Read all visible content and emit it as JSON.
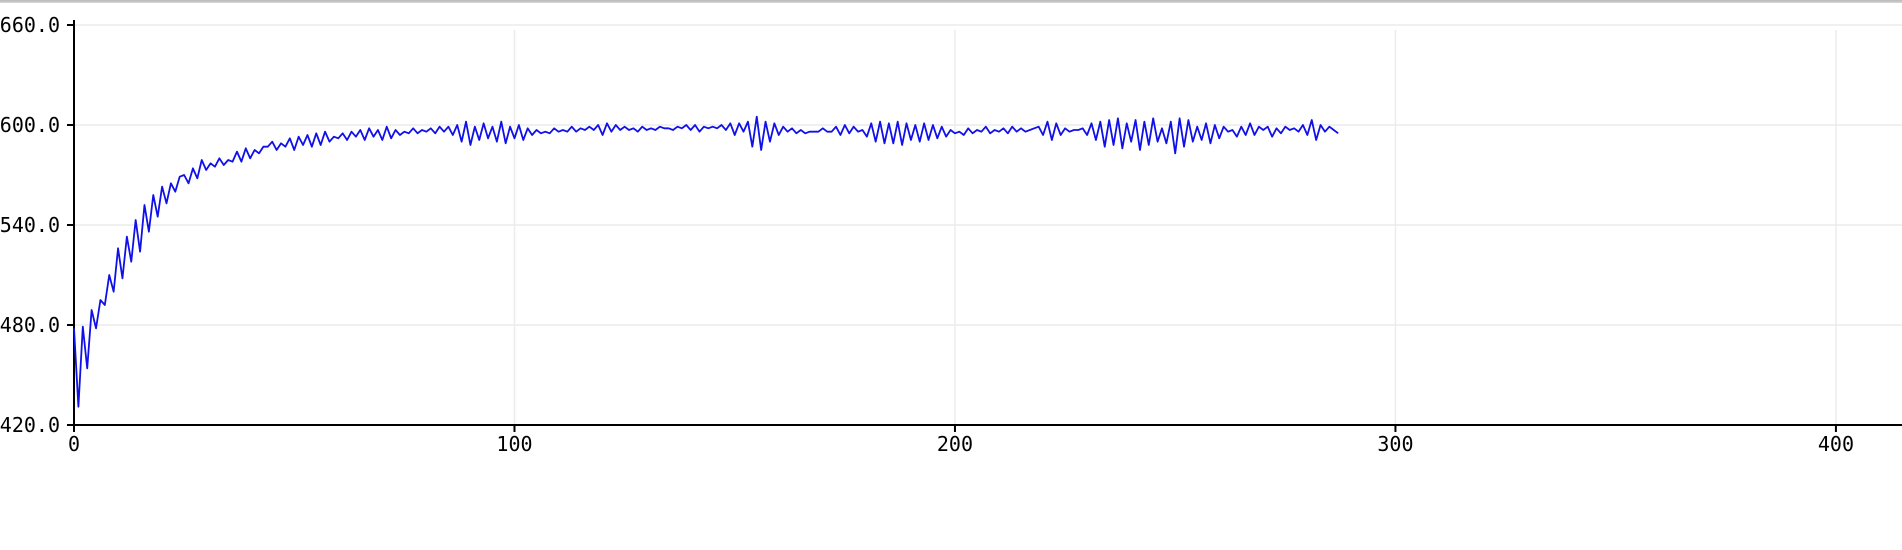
{
  "colors": {
    "line": "#1010e8",
    "grid": "#ececec",
    "axis": "#000000",
    "background": "#ffffff"
  },
  "chart_data": {
    "type": "line",
    "title": "",
    "xlabel": "",
    "ylabel": "",
    "xlim": [
      0,
      415
    ],
    "ylim": [
      420,
      672
    ],
    "grid": true,
    "legend": "none",
    "x_ticks": [
      0,
      100,
      200,
      300,
      400
    ],
    "x_tick_labels": [
      "0",
      "100",
      "200",
      "300",
      "400"
    ],
    "y_ticks": [
      420,
      480,
      540,
      600,
      660
    ],
    "y_tick_labels": [
      "420.0",
      "480.0",
      "540.0",
      "600.0",
      "660.0"
    ],
    "series": [
      {
        "x_start": 0,
        "x_step": 1,
        "values": [
          478,
          431,
          479,
          454,
          489,
          478,
          495,
          492,
          510,
          500,
          526,
          508,
          533,
          518,
          543,
          524,
          552,
          536,
          558,
          545,
          563,
          553,
          565,
          560,
          569,
          570,
          565,
          574,
          568,
          579,
          573,
          577,
          575,
          580,
          576,
          579,
          578,
          584,
          578,
          586,
          580,
          585,
          583,
          587,
          587,
          590,
          585,
          589,
          587,
          592,
          585,
          593,
          588,
          594,
          587,
          595,
          588,
          596,
          590,
          593,
          592,
          595,
          591,
          596,
          593,
          597,
          591,
          598,
          593,
          597,
          591,
          599,
          592,
          597,
          594,
          596,
          595,
          598,
          595,
          597,
          596,
          598,
          595,
          599,
          596,
          599,
          594,
          600,
          590,
          602,
          588,
          599,
          591,
          601,
          592,
          599,
          590,
          602,
          589,
          599,
          592,
          600,
          591,
          598,
          594,
          597,
          595,
          596,
          595,
          598,
          596,
          597,
          596,
          599,
          596,
          598,
          597,
          599,
          597,
          600,
          594,
          601,
          596,
          600,
          597,
          599,
          597,
          598,
          596,
          599,
          597,
          598,
          597,
          599,
          598,
          598,
          597,
          599,
          598,
          600,
          597,
          600,
          596,
          599,
          598,
          599,
          598,
          600,
          597,
          601,
          594,
          601,
          596,
          602,
          587,
          605,
          585,
          602,
          590,
          601,
          594,
          599,
          596,
          598,
          595,
          597,
          595,
          596,
          596,
          596,
          598,
          596,
          596,
          599,
          594,
          600,
          595,
          599,
          596,
          597,
          593,
          601,
          590,
          602,
          589,
          601,
          589,
          602,
          588,
          601,
          591,
          600,
          590,
          601,
          591,
          600,
          592,
          599,
          593,
          597,
          595,
          596,
          594,
          598,
          595,
          597,
          596,
          599,
          595,
          597,
          596,
          598,
          595,
          599,
          596,
          598,
          596,
          597,
          598,
          599,
          594,
          602,
          591,
          601,
          594,
          598,
          596,
          597,
          597,
          598,
          594,
          601,
          591,
          602,
          587,
          603,
          588,
          604,
          586,
          601,
          590,
          603,
          585,
          602,
          588,
          604,
          590,
          598,
          589,
          602,
          583,
          604,
          587,
          603,
          590,
          599,
          591,
          601,
          589,
          600,
          592,
          599,
          596,
          597,
          593,
          599,
          594,
          601,
          594,
          599,
          597,
          599,
          593,
          598,
          595,
          599,
          597,
          598,
          596,
          600,
          594,
          603,
          591,
          600,
          596,
          599,
          597,
          595
        ]
      }
    ]
  }
}
